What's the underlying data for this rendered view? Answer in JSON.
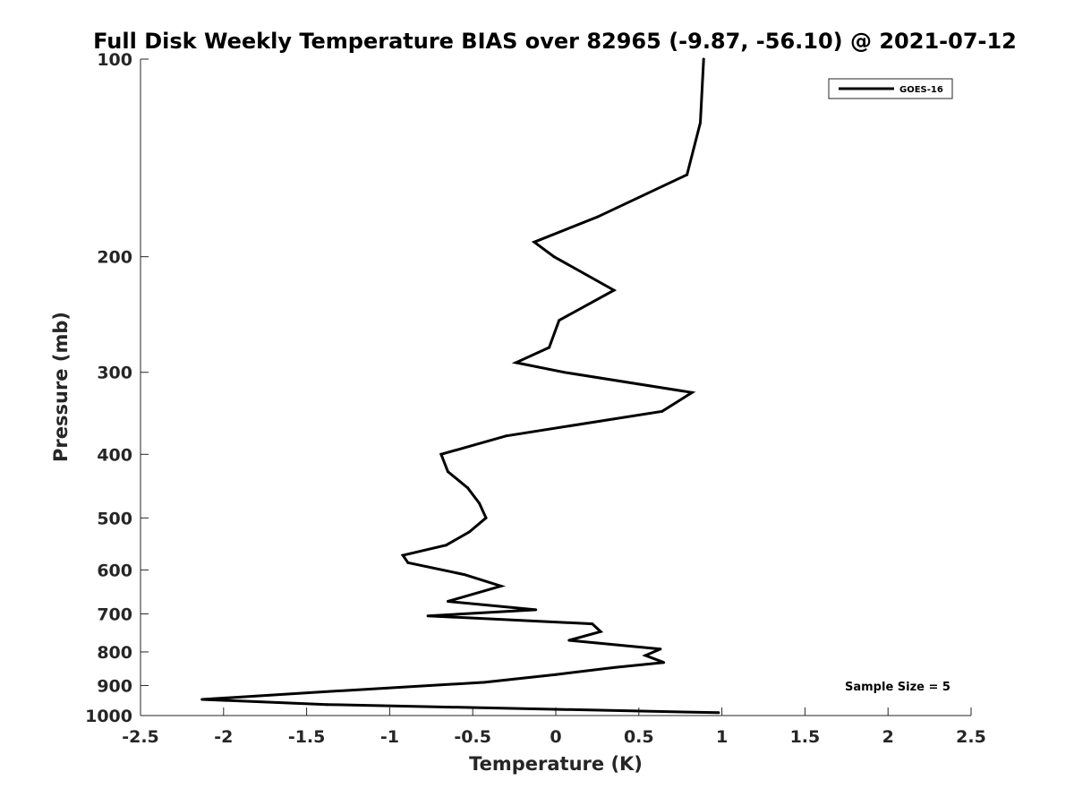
{
  "chart_data": {
    "type": "line",
    "title": "Full Disk Weekly Temperature BIAS over 82965 (-9.87, -56.10) @ 2021-07-12",
    "xlabel": "Temperature (K)",
    "ylabel": "Pressure (mb)",
    "xlim": [
      -2.5,
      2.5
    ],
    "ylim": [
      100,
      1000
    ],
    "y_scale": "log",
    "y_reversed": true,
    "grid": false,
    "legend_position": "top-right",
    "x_ticks": [
      -2.5,
      -2,
      -1.5,
      -1,
      -0.5,
      0,
      0.5,
      1,
      1.5,
      2,
      2.5
    ],
    "x_tick_labels": [
      "-2.5",
      "-2",
      "-1.5",
      "-1",
      "-0.5",
      "0",
      "0.5",
      "1",
      "1.5",
      "2",
      "2.5"
    ],
    "y_ticks": [
      100,
      200,
      300,
      400,
      500,
      600,
      700,
      800,
      900,
      1000
    ],
    "y_tick_labels": [
      "100",
      "200",
      "300",
      "400",
      "500",
      "600",
      "700",
      "800",
      "900",
      "1000"
    ],
    "annotation": "Sample Size = 5",
    "series": [
      {
        "name": "GOES-16",
        "color": "#000000",
        "points": [
          {
            "t": 0.89,
            "p": 100
          },
          {
            "t": 0.87,
            "p": 125
          },
          {
            "t": 0.79,
            "p": 150
          },
          {
            "t": 0.25,
            "p": 174
          },
          {
            "t": -0.13,
            "p": 190
          },
          {
            "t": -0.01,
            "p": 200
          },
          {
            "t": 0.35,
            "p": 225
          },
          {
            "t": 0.02,
            "p": 250
          },
          {
            "t": -0.04,
            "p": 275
          },
          {
            "t": -0.24,
            "p": 290
          },
          {
            "t": 0.05,
            "p": 300
          },
          {
            "t": 0.82,
            "p": 322
          },
          {
            "t": 0.64,
            "p": 344
          },
          {
            "t": -0.3,
            "p": 375
          },
          {
            "t": -0.69,
            "p": 400
          },
          {
            "t": -0.65,
            "p": 425
          },
          {
            "t": -0.53,
            "p": 450
          },
          {
            "t": -0.46,
            "p": 475
          },
          {
            "t": -0.42,
            "p": 500
          },
          {
            "t": -0.52,
            "p": 525
          },
          {
            "t": -0.66,
            "p": 550
          },
          {
            "t": -0.92,
            "p": 570
          },
          {
            "t": -0.89,
            "p": 585
          },
          {
            "t": -0.55,
            "p": 610
          },
          {
            "t": -0.33,
            "p": 635
          },
          {
            "t": -0.65,
            "p": 670
          },
          {
            "t": -0.12,
            "p": 690
          },
          {
            "t": -0.77,
            "p": 705
          },
          {
            "t": 0.22,
            "p": 725
          },
          {
            "t": 0.27,
            "p": 745
          },
          {
            "t": 0.08,
            "p": 768
          },
          {
            "t": 0.63,
            "p": 792
          },
          {
            "t": 0.54,
            "p": 810
          },
          {
            "t": 0.65,
            "p": 830
          },
          {
            "t": 0.35,
            "p": 845
          },
          {
            "t": 0.0,
            "p": 866
          },
          {
            "t": -0.43,
            "p": 890
          },
          {
            "t": -1.4,
            "p": 920
          },
          {
            "t": -2.13,
            "p": 945
          },
          {
            "t": -1.38,
            "p": 962
          },
          {
            "t": 0.98,
            "p": 990
          }
        ]
      }
    ]
  }
}
